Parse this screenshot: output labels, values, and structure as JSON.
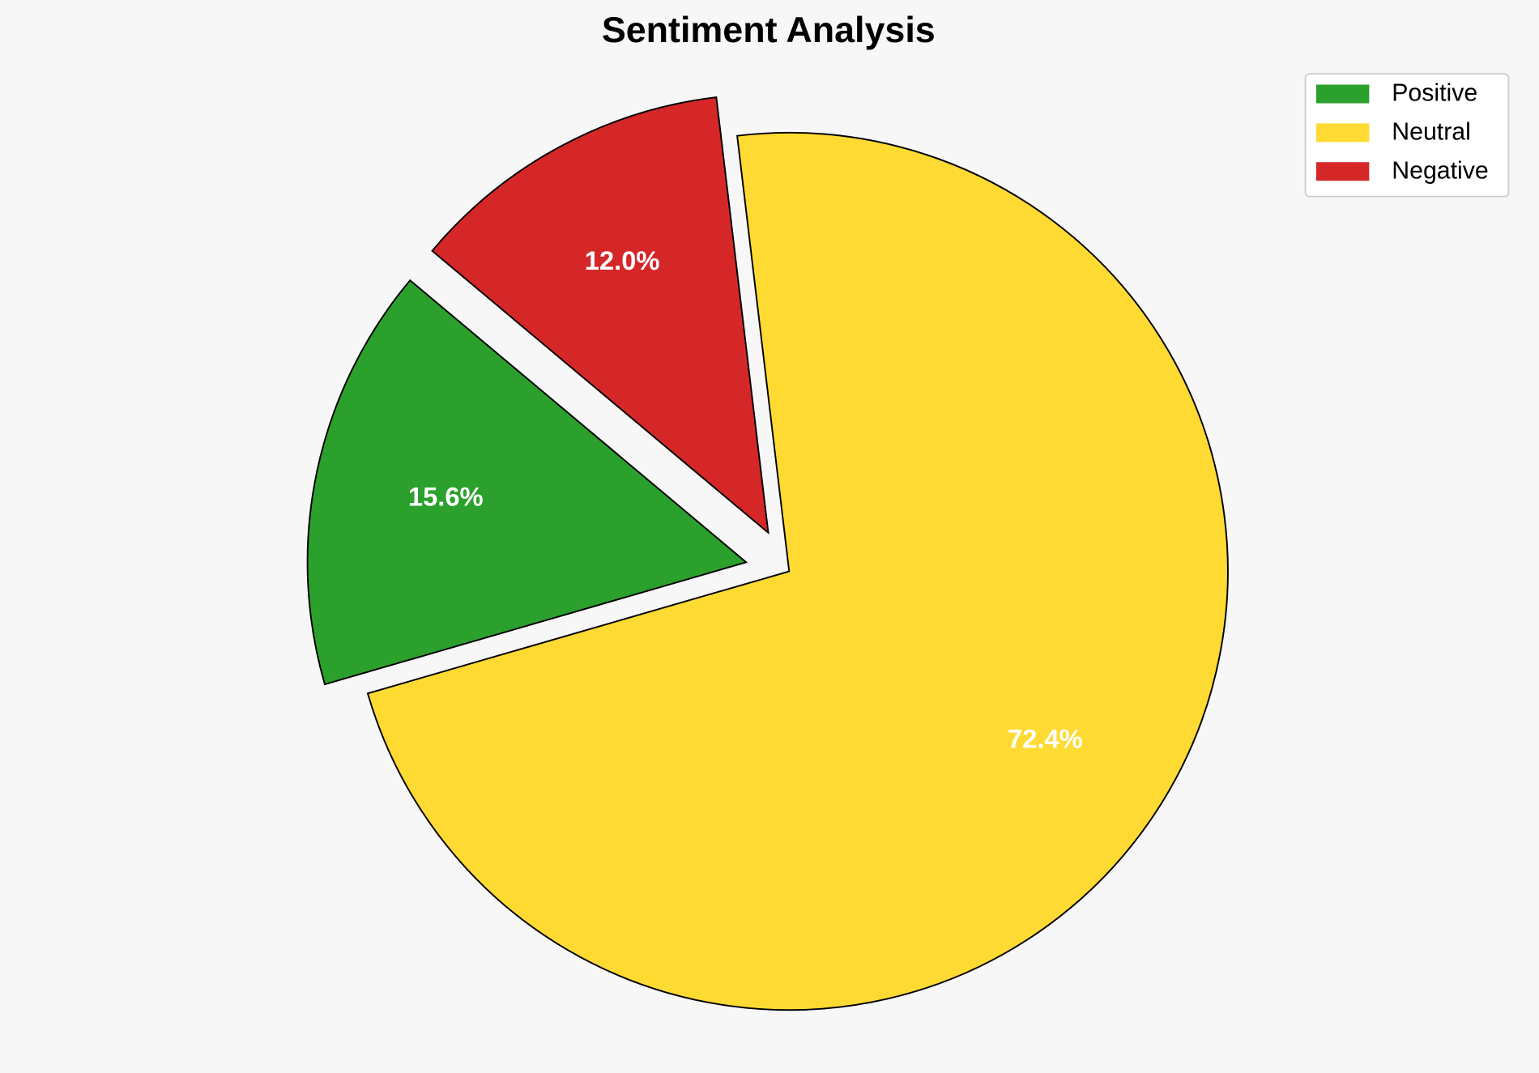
{
  "chart_data": {
    "type": "pie",
    "title": "Sentiment Analysis",
    "categories": [
      "Positive",
      "Neutral",
      "Negative"
    ],
    "values": [
      15.6,
      72.4,
      12.0
    ],
    "value_labels": [
      "15.6%",
      "72.4%",
      "12.0%"
    ],
    "colors": [
      "#2ca02c",
      "#ffda33",
      "#d62728"
    ],
    "explode": [
      0.1,
      0,
      0.1
    ],
    "startangle": 140,
    "legend": "upper right"
  }
}
